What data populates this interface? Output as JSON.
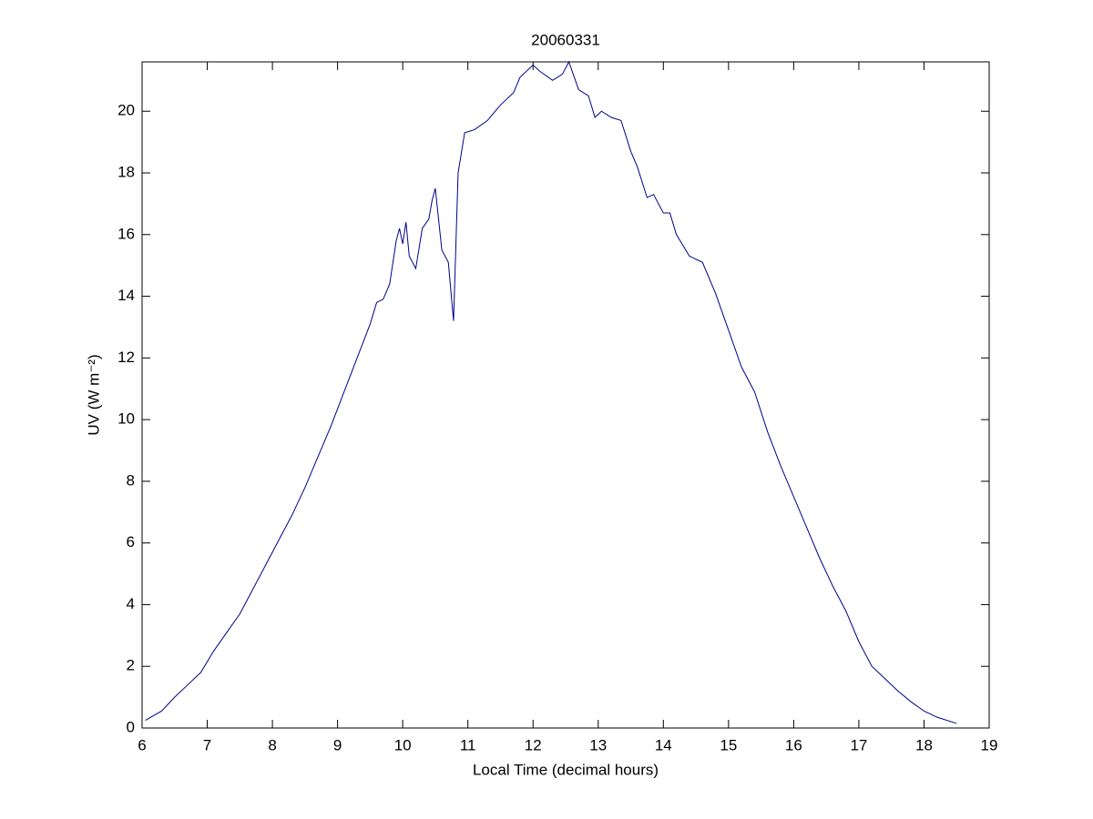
{
  "chart_data": {
    "type": "line",
    "title": "20060331",
    "x_label": "Local Time (decimal hours)",
    "y_label": "UV (W m⁻²)",
    "x": [
      6.05,
      6.3,
      6.5,
      6.7,
      6.9,
      7.1,
      7.3,
      7.5,
      7.7,
      7.9,
      8.1,
      8.3,
      8.5,
      8.7,
      8.9,
      9.1,
      9.3,
      9.5,
      9.6,
      9.7,
      9.8,
      9.9,
      9.95,
      10.0,
      10.05,
      10.1,
      10.2,
      10.3,
      10.4,
      10.45,
      10.5,
      10.6,
      10.7,
      10.78,
      10.85,
      10.95,
      11.1,
      11.3,
      11.5,
      11.7,
      11.8,
      12.0,
      12.1,
      12.3,
      12.45,
      12.55,
      12.7,
      12.85,
      12.95,
      13.05,
      13.2,
      13.35,
      13.5,
      13.6,
      13.75,
      13.85,
      14.0,
      14.1,
      14.2,
      14.4,
      14.6,
      14.8,
      15.0,
      15.2,
      15.4,
      15.6,
      15.8,
      16.0,
      16.2,
      16.4,
      16.6,
      16.8,
      17.0,
      17.2,
      17.4,
      17.6,
      17.8,
      18.0,
      18.2,
      18.5
    ],
    "series": [
      {
        "color": "#00008b",
        "values": [
          0.25,
          0.55,
          1.0,
          1.4,
          1.8,
          2.5,
          3.1,
          3.7,
          4.5,
          5.3,
          6.1,
          6.9,
          7.8,
          8.8,
          9.8,
          10.9,
          12.0,
          13.1,
          13.8,
          13.9,
          14.4,
          15.8,
          16.2,
          15.7,
          16.4,
          15.3,
          14.9,
          16.2,
          16.5,
          17.1,
          17.5,
          15.5,
          15.1,
          13.2,
          18.0,
          19.3,
          19.4,
          19.7,
          20.2,
          20.6,
          21.1,
          21.5,
          21.3,
          21.0,
          21.2,
          21.6,
          20.7,
          20.5,
          19.8,
          20.0,
          19.8,
          19.7,
          18.7,
          18.2,
          17.2,
          17.3,
          16.7,
          16.7,
          16.0,
          15.3,
          15.1,
          14.1,
          12.9,
          11.7,
          10.9,
          9.6,
          8.5,
          7.5,
          6.5,
          5.5,
          4.6,
          3.8,
          2.8,
          2.0,
          1.6,
          1.2,
          0.85,
          0.55,
          0.35,
          0.15
        ]
      }
    ],
    "xlim": [
      6,
      19
    ],
    "xticks": [
      6,
      7,
      8,
      9,
      10,
      11,
      12,
      13,
      14,
      15,
      16,
      17,
      18,
      19
    ],
    "ylim": [
      0,
      21.6
    ],
    "yticks": [
      0,
      2,
      4,
      6,
      8,
      10,
      12,
      14,
      16,
      18,
      20
    ]
  }
}
